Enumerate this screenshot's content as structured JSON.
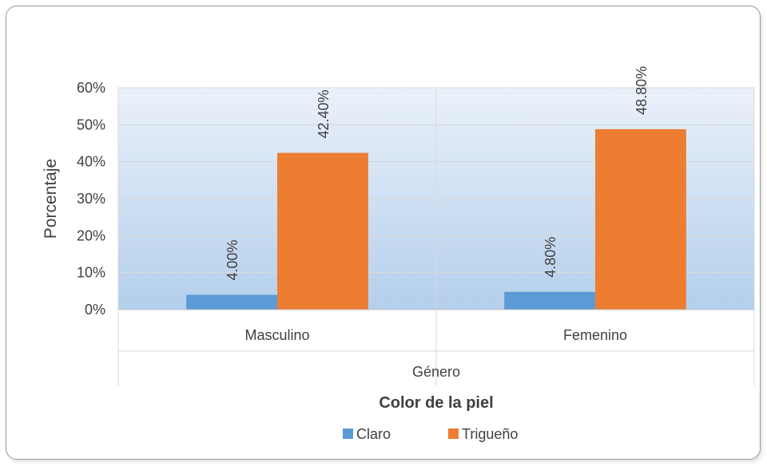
{
  "chart_data": {
    "type": "bar",
    "title": "",
    "ylabel": "Porcentaje",
    "xlabel": "Color de la piel",
    "group_label": "Género",
    "categories": [
      "Masculino",
      "Femenino"
    ],
    "series": [
      {
        "name": "Claro",
        "color": "#5b9bd5",
        "values": [
          4.0,
          4.8
        ],
        "labels": [
          "4.00%",
          "4.80%"
        ]
      },
      {
        "name": "Trigueño",
        "color": "#ed7d31",
        "values": [
          42.4,
          48.8
        ],
        "labels": [
          "42.40%",
          "48.80%"
        ]
      }
    ],
    "ylim": [
      0,
      60
    ],
    "yticks": [
      0,
      10,
      20,
      30,
      40,
      50,
      60
    ],
    "ytick_labels": [
      "0%",
      "10%",
      "20%",
      "30%",
      "40%",
      "50%",
      "60%"
    ],
    "grid": true,
    "plot_background": "gradient light-blue",
    "legend_position": "bottom"
  }
}
